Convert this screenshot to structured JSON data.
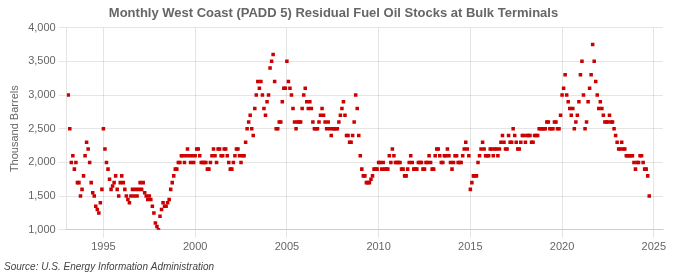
{
  "chart_data": {
    "type": "scatter",
    "title": "Monthly West Coast (PADD 5) Residual Fuel Oil Stocks at Bulk Terminals",
    "y_label": "Thousand Barrels",
    "source": "Source: U.S. Energy Information Administration",
    "color": "#cc0000",
    "marker": "square",
    "grid": true,
    "xlim": [
      1993.0,
      2025.5
    ],
    "xticks": [
      1995,
      2000,
      2005,
      2010,
      2015,
      2020,
      2025
    ],
    "ylim": [
      1000,
      4000
    ],
    "yticks": [
      {
        "value": 1000,
        "label": "1,000"
      },
      {
        "value": 1500,
        "label": "1,500"
      },
      {
        "value": 2000,
        "label": "2,000"
      },
      {
        "value": 2500,
        "label": "2,500"
      },
      {
        "value": 3000,
        "label": "3,000"
      },
      {
        "value": 3500,
        "label": "3,500"
      },
      {
        "value": 4000,
        "label": "4,000"
      }
    ],
    "x": [
      1993.083,
      1993.167,
      1993.25,
      1993.333,
      1993.417,
      1993.5,
      1993.583,
      1993.667,
      1993.75,
      1993.833,
      1993.917,
      1994.0,
      1994.083,
      1994.167,
      1994.25,
      1994.333,
      1994.417,
      1994.5,
      1994.583,
      1994.667,
      1994.75,
      1994.833,
      1994.917,
      1995.0,
      1995.083,
      1995.167,
      1995.25,
      1995.333,
      1995.417,
      1995.5,
      1995.583,
      1995.667,
      1995.75,
      1995.833,
      1995.917,
      1996.0,
      1996.083,
      1996.167,
      1996.25,
      1996.333,
      1996.417,
      1996.5,
      1996.583,
      1996.667,
      1996.75,
      1996.833,
      1996.917,
      1997.0,
      1997.083,
      1997.167,
      1997.25,
      1997.333,
      1997.417,
      1997.5,
      1997.583,
      1997.667,
      1997.75,
      1997.833,
      1997.917,
      1998.0,
      1998.083,
      1998.167,
      1998.25,
      1998.333,
      1998.417,
      1998.5,
      1998.583,
      1998.667,
      1998.75,
      1998.833,
      1998.917,
      1999.0,
      1999.083,
      1999.167,
      1999.25,
      1999.333,
      1999.417,
      1999.5,
      1999.583,
      1999.667,
      1999.75,
      1999.833,
      1999.917,
      2000.0,
      2000.083,
      2000.167,
      2000.25,
      2000.333,
      2000.417,
      2000.5,
      2000.583,
      2000.667,
      2000.75,
      2000.833,
      2000.917,
      2001.0,
      2001.083,
      2001.167,
      2001.25,
      2001.333,
      2001.417,
      2001.5,
      2001.583,
      2001.667,
      2001.75,
      2001.833,
      2001.917,
      2002.0,
      2002.083,
      2002.167,
      2002.25,
      2002.333,
      2002.417,
      2002.5,
      2002.583,
      2002.667,
      2002.75,
      2002.833,
      2002.917,
      2003.0,
      2003.083,
      2003.167,
      2003.25,
      2003.333,
      2003.417,
      2003.5,
      2003.583,
      2003.667,
      2003.75,
      2003.833,
      2003.917,
      2004.0,
      2004.083,
      2004.167,
      2004.25,
      2004.333,
      2004.417,
      2004.5,
      2004.583,
      2004.667,
      2004.75,
      2004.833,
      2004.917,
      2005.0,
      2005.083,
      2005.167,
      2005.25,
      2005.333,
      2005.417,
      2005.5,
      2005.583,
      2005.667,
      2005.75,
      2005.833,
      2005.917,
      2006.0,
      2006.083,
      2006.167,
      2006.25,
      2006.333,
      2006.417,
      2006.5,
      2006.583,
      2006.667,
      2006.75,
      2006.833,
      2006.917,
      2007.0,
      2007.083,
      2007.167,
      2007.25,
      2007.333,
      2007.417,
      2007.5,
      2007.583,
      2007.667,
      2007.75,
      2007.833,
      2007.917,
      2008.0,
      2008.083,
      2008.167,
      2008.25,
      2008.333,
      2008.417,
      2008.5,
      2008.583,
      2008.667,
      2008.75,
      2008.833,
      2008.917,
      2009.0,
      2009.083,
      2009.167,
      2009.25,
      2009.333,
      2009.417,
      2009.5,
      2009.583,
      2009.667,
      2009.75,
      2009.833,
      2009.917,
      2010.0,
      2010.083,
      2010.167,
      2010.25,
      2010.333,
      2010.417,
      2010.5,
      2010.583,
      2010.667,
      2010.75,
      2010.833,
      2010.917,
      2011.0,
      2011.083,
      2011.167,
      2011.25,
      2011.333,
      2011.417,
      2011.5,
      2011.583,
      2011.667,
      2011.75,
      2011.833,
      2011.917,
      2012.0,
      2012.083,
      2012.167,
      2012.25,
      2012.333,
      2012.417,
      2012.5,
      2012.583,
      2012.667,
      2012.75,
      2012.833,
      2012.917,
      2013.0,
      2013.083,
      2013.167,
      2013.25,
      2013.333,
      2013.417,
      2013.5,
      2013.583,
      2013.667,
      2013.75,
      2013.833,
      2013.917,
      2014.0,
      2014.083,
      2014.167,
      2014.25,
      2014.333,
      2014.417,
      2014.5,
      2014.583,
      2014.667,
      2014.75,
      2014.833,
      2014.917,
      2015.0,
      2015.083,
      2015.167,
      2015.25,
      2015.333,
      2015.417,
      2015.5,
      2015.583,
      2015.667,
      2015.75,
      2015.833,
      2015.917,
      2016.0,
      2016.083,
      2016.167,
      2016.25,
      2016.333,
      2016.417,
      2016.5,
      2016.583,
      2016.667,
      2016.75,
      2016.833,
      2016.917,
      2017.0,
      2017.083,
      2017.167,
      2017.25,
      2017.333,
      2017.417,
      2017.5,
      2017.583,
      2017.667,
      2017.75,
      2017.833,
      2017.917,
      2018.0,
      2018.083,
      2018.167,
      2018.25,
      2018.333,
      2018.417,
      2018.5,
      2018.583,
      2018.667,
      2018.75,
      2018.833,
      2018.917,
      2019.0,
      2019.083,
      2019.167,
      2019.25,
      2019.333,
      2019.417,
      2019.5,
      2019.583,
      2019.667,
      2019.75,
      2019.833,
      2019.917,
      2020.0,
      2020.083,
      2020.167,
      2020.25,
      2020.333,
      2020.417,
      2020.5,
      2020.583,
      2020.667,
      2020.75,
      2020.833,
      2020.917,
      2021.0,
      2021.083,
      2021.167,
      2021.25,
      2021.333,
      2021.417,
      2021.5,
      2021.583,
      2021.667,
      2021.75,
      2021.833,
      2021.917,
      2022.0,
      2022.083,
      2022.167,
      2022.25,
      2022.333,
      2022.417,
      2022.5,
      2022.583,
      2022.667,
      2022.75,
      2022.833,
      2022.917,
      2023.0,
      2023.083,
      2023.167,
      2023.25,
      2023.333,
      2023.417,
      2023.5,
      2023.583,
      2023.667,
      2023.75,
      2023.833,
      2023.917,
      2024.0,
      2024.083,
      2024.167,
      2024.25,
      2024.333,
      2024.417,
      2024.5,
      2024.583,
      2024.667,
      2024.75
    ],
    "values": [
      3000,
      2500,
      2000,
      2100,
      1900,
      2000,
      1700,
      1700,
      1500,
      1600,
      1800,
      2100,
      2300,
      2200,
      2000,
      1700,
      1550,
      1500,
      1350,
      1300,
      1250,
      1400,
      1600,
      2500,
      2200,
      2000,
      1900,
      1750,
      1600,
      1650,
      1700,
      1800,
      1600,
      1500,
      1700,
      1800,
      1700,
      1600,
      1500,
      1450,
      1400,
      1500,
      1600,
      1500,
      1600,
      1500,
      1600,
      1700,
      1600,
      1700,
      1550,
      1500,
      1450,
      1500,
      1450,
      1350,
      1250,
      1100,
      1050,
      1000,
      1200,
      1300,
      1400,
      1350,
      1350,
      1400,
      1450,
      1600,
      1700,
      1800,
      1900,
      1900,
      2000,
      2000,
      2100,
      2100,
      2000,
      2100,
      2200,
      2100,
      2000,
      2100,
      2000,
      2100,
      2200,
      2200,
      2100,
      2000,
      2000,
      2000,
      2000,
      1900,
      1900,
      2000,
      2100,
      2200,
      2100,
      2000,
      2200,
      2200,
      2100,
      2100,
      2200,
      2200,
      2100,
      2000,
      1900,
      1900,
      2000,
      2100,
      2200,
      2200,
      2100,
      2000,
      2100,
      2100,
      2300,
      2500,
      2600,
      2700,
      2500,
      2400,
      2800,
      3000,
      3200,
      3100,
      3200,
      3000,
      2800,
      2700,
      2900,
      3000,
      3400,
      3500,
      3600,
      3200,
      2500,
      2500,
      2600,
      2600,
      2900,
      3100,
      3100,
      3500,
      3200,
      3100,
      3000,
      2800,
      2600,
      2500,
      2600,
      2600,
      2600,
      2800,
      3000,
      3100,
      2900,
      2800,
      2900,
      2800,
      2600,
      2500,
      2500,
      2500,
      2600,
      2700,
      2800,
      2700,
      2600,
      2500,
      2600,
      2500,
      2400,
      2500,
      2500,
      2500,
      2500,
      2600,
      2700,
      2800,
      2900,
      2700,
      2400,
      2400,
      2300,
      2300,
      2400,
      2600,
      3000,
      2800,
      2400,
      2100,
      1900,
      1800,
      1800,
      1700,
      1700,
      1700,
      1750,
      1800,
      1900,
      1900,
      1900,
      2000,
      2000,
      1900,
      2000,
      1900,
      1900,
      1900,
      2100,
      2000,
      2200,
      2100,
      2000,
      2000,
      2000,
      2000,
      1900,
      1900,
      1800,
      1800,
      1900,
      2000,
      2100,
      2000,
      1900,
      1900,
      1900,
      2000,
      2000,
      2000,
      1900,
      1900,
      2000,
      2000,
      2100,
      2000,
      1900,
      1900,
      2100,
      2200,
      2200,
      2100,
      2000,
      2000,
      2100,
      2100,
      2200,
      2100,
      2000,
      1900,
      2000,
      2100,
      2100,
      2000,
      2000,
      2000,
      2100,
      2200,
      2300,
      2200,
      2100,
      1600,
      1700,
      1800,
      1800,
      1800,
      2000,
      2100,
      2200,
      2300,
      2200,
      2100,
      2100,
      2100,
      2200,
      2200,
      2100,
      2200,
      2200,
      2100,
      2200,
      2300,
      2400,
      2300,
      2200,
      2200,
      2400,
      2300,
      2300,
      2500,
      2400,
      2300,
      2200,
      2200,
      2300,
      2400,
      2400,
      2300,
      2400,
      2400,
      2400,
      2300,
      2300,
      2400,
      2400,
      2400,
      2500,
      2500,
      2500,
      2500,
      2500,
      2600,
      2600,
      2500,
      2500,
      2500,
      2600,
      2600,
      2500,
      2500,
      2700,
      3000,
      3100,
      3300,
      3000,
      2900,
      2800,
      2700,
      2800,
      2500,
      2600,
      2700,
      2900,
      3300,
      3500,
      3000,
      2500,
      2600,
      2900,
      3100,
      3300,
      3750,
      3500,
      3200,
      3000,
      2800,
      2900,
      2800,
      2700,
      2600,
      2600,
      2600,
      2700,
      2600,
      2600,
      2500,
      2400,
      2300,
      2200,
      2200,
      2300,
      2200,
      2200,
      2100,
      2100,
      2100,
      2100,
      2100,
      2000,
      1900,
      2000,
      2000,
      2100,
      2100,
      2000,
      1900,
      1900,
      1800,
      1500
    ]
  }
}
